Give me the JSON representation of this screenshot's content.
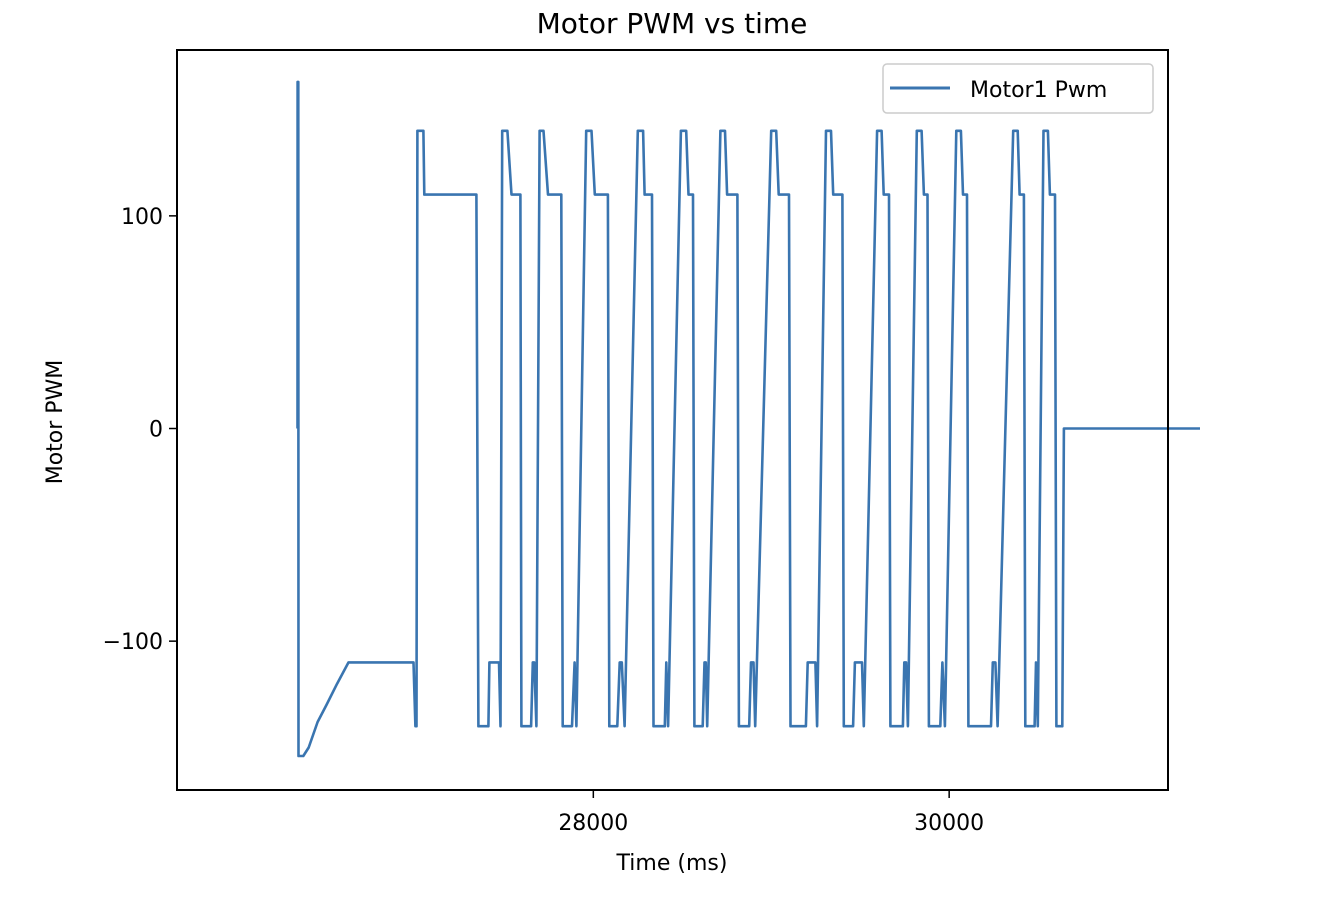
{
  "chart_data": {
    "type": "line",
    "title": "Motor PWM vs time",
    "xlabel": "Time (ms)",
    "ylabel": "Motor PWM",
    "xlim": [
      25660,
      31230
    ],
    "ylim": [
      -170,
      178
    ],
    "xticks": [
      28000,
      30000
    ],
    "xtick_labels": [
      "28000",
      "30000"
    ],
    "yticks": [
      -100,
      0,
      100
    ],
    "ytick_labels": [
      "−100",
      "0",
      "100"
    ],
    "grid": false,
    "legend": {
      "position": "upper right",
      "entries": [
        "Motor1 Pwm"
      ]
    },
    "series": [
      {
        "name": "Motor1 Pwm",
        "color": "#3a75b0",
        "points": [
          [
            26337,
            0
          ],
          [
            26338,
            163
          ],
          [
            26342,
            163
          ],
          [
            26343,
            -154
          ],
          [
            26370,
            -154
          ],
          [
            26400,
            -150
          ],
          [
            26450,
            -138
          ],
          [
            26500,
            -130
          ],
          [
            26560,
            -120
          ],
          [
            26624,
            -110
          ],
          [
            26989,
            -110
          ],
          [
            27000,
            -140
          ],
          [
            27006,
            -140
          ],
          [
            27011,
            140
          ],
          [
            27045,
            140
          ],
          [
            27050,
            110
          ],
          [
            27343,
            110
          ],
          [
            27354,
            -140
          ],
          [
            27410,
            -140
          ],
          [
            27416,
            -110
          ],
          [
            27470,
            -110
          ],
          [
            27478,
            -140
          ],
          [
            27488,
            140
          ],
          [
            27517,
            140
          ],
          [
            27540,
            110
          ],
          [
            27590,
            110
          ],
          [
            27596,
            -140
          ],
          [
            27650,
            -140
          ],
          [
            27660,
            -110
          ],
          [
            27668,
            -110
          ],
          [
            27680,
            -140
          ],
          [
            27698,
            140
          ],
          [
            27720,
            140
          ],
          [
            27745,
            110
          ],
          [
            27820,
            110
          ],
          [
            27828,
            -140
          ],
          [
            27880,
            -140
          ],
          [
            27895,
            -110
          ],
          [
            27905,
            -140
          ],
          [
            27960,
            140
          ],
          [
            27990,
            140
          ],
          [
            28008,
            110
          ],
          [
            28082,
            110
          ],
          [
            28090,
            -140
          ],
          [
            28135,
            -140
          ],
          [
            28148,
            -110
          ],
          [
            28160,
            -110
          ],
          [
            28176,
            -140
          ],
          [
            28250,
            140
          ],
          [
            28280,
            140
          ],
          [
            28288,
            110
          ],
          [
            28330,
            110
          ],
          [
            28338,
            -140
          ],
          [
            28402,
            -140
          ],
          [
            28410,
            -110
          ],
          [
            28420,
            -140
          ],
          [
            28492,
            140
          ],
          [
            28522,
            140
          ],
          [
            28535,
            110
          ],
          [
            28560,
            110
          ],
          [
            28568,
            -140
          ],
          [
            28615,
            -140
          ],
          [
            28625,
            -110
          ],
          [
            28632,
            -110
          ],
          [
            28640,
            -140
          ],
          [
            28714,
            140
          ],
          [
            28740,
            140
          ],
          [
            28752,
            110
          ],
          [
            28810,
            110
          ],
          [
            28818,
            -140
          ],
          [
            28876,
            -140
          ],
          [
            28886,
            -110
          ],
          [
            28900,
            -110
          ],
          [
            28910,
            -140
          ],
          [
            29000,
            140
          ],
          [
            29028,
            140
          ],
          [
            29042,
            110
          ],
          [
            29100,
            110
          ],
          [
            29108,
            -140
          ],
          [
            29195,
            -140
          ],
          [
            29205,
            -110
          ],
          [
            29248,
            -110
          ],
          [
            29258,
            -140
          ],
          [
            29308,
            140
          ],
          [
            29336,
            140
          ],
          [
            29348,
            110
          ],
          [
            29400,
            110
          ],
          [
            29408,
            -140
          ],
          [
            29460,
            -140
          ],
          [
            29470,
            -110
          ],
          [
            29510,
            -110
          ],
          [
            29520,
            -140
          ],
          [
            29595,
            140
          ],
          [
            29620,
            140
          ],
          [
            29632,
            110
          ],
          [
            29662,
            110
          ],
          [
            29670,
            -140
          ],
          [
            29740,
            -140
          ],
          [
            29748,
            -110
          ],
          [
            29758,
            -110
          ],
          [
            29768,
            -140
          ],
          [
            29818,
            140
          ],
          [
            29845,
            140
          ],
          [
            29858,
            110
          ],
          [
            29878,
            110
          ],
          [
            29886,
            -140
          ],
          [
            29950,
            -140
          ],
          [
            29962,
            -110
          ],
          [
            29976,
            -140
          ],
          [
            30040,
            140
          ],
          [
            30066,
            140
          ],
          [
            30078,
            110
          ],
          [
            30100,
            110
          ],
          [
            30108,
            -140
          ],
          [
            30235,
            -140
          ],
          [
            30245,
            -110
          ],
          [
            30260,
            -110
          ],
          [
            30272,
            -140
          ],
          [
            30360,
            140
          ],
          [
            30385,
            140
          ],
          [
            30396,
            110
          ],
          [
            30420,
            110
          ],
          [
            30428,
            -140
          ],
          [
            30480,
            -140
          ],
          [
            30488,
            -110
          ],
          [
            30498,
            -140
          ],
          [
            30530,
            140
          ],
          [
            30555,
            140
          ],
          [
            30566,
            110
          ],
          [
            30595,
            110
          ],
          [
            30603,
            -140
          ],
          [
            30636,
            -140
          ],
          [
            30645,
            0
          ],
          [
            31410,
            0
          ]
        ]
      }
    ]
  }
}
